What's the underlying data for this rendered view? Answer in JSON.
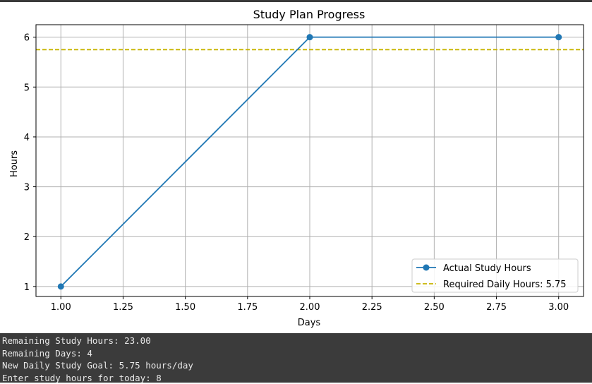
{
  "chart_data": {
    "type": "line",
    "title": "Study Plan Progress",
    "xlabel": "Days",
    "ylabel": "Hours",
    "xlim": [
      0.9,
      3.1
    ],
    "ylim": [
      0.8,
      6.25
    ],
    "xticks": [
      "1.00",
      "1.25",
      "1.50",
      "1.75",
      "2.00",
      "2.25",
      "2.50",
      "2.75",
      "3.00"
    ],
    "yticks": [
      "1",
      "2",
      "3",
      "4",
      "5",
      "6"
    ],
    "grid": true,
    "legend_position": "lower-right",
    "series": [
      {
        "name": "Actual Study Hours",
        "x": [
          1,
          2,
          3
        ],
        "y": [
          1,
          6,
          6
        ],
        "color": "#1f77b4",
        "marker": "circle",
        "line_style": "solid"
      },
      {
        "name": "Required Daily Hours: 5.75",
        "hline": 5.75,
        "color": "#c8b400",
        "line_style": "dashed"
      }
    ]
  },
  "console": {
    "lines": [
      "Remaining Study Hours: 23.00",
      "Remaining Days: 4",
      "New Daily Study Goal: 5.75 hours/day",
      "Enter study hours for today: 8"
    ]
  }
}
